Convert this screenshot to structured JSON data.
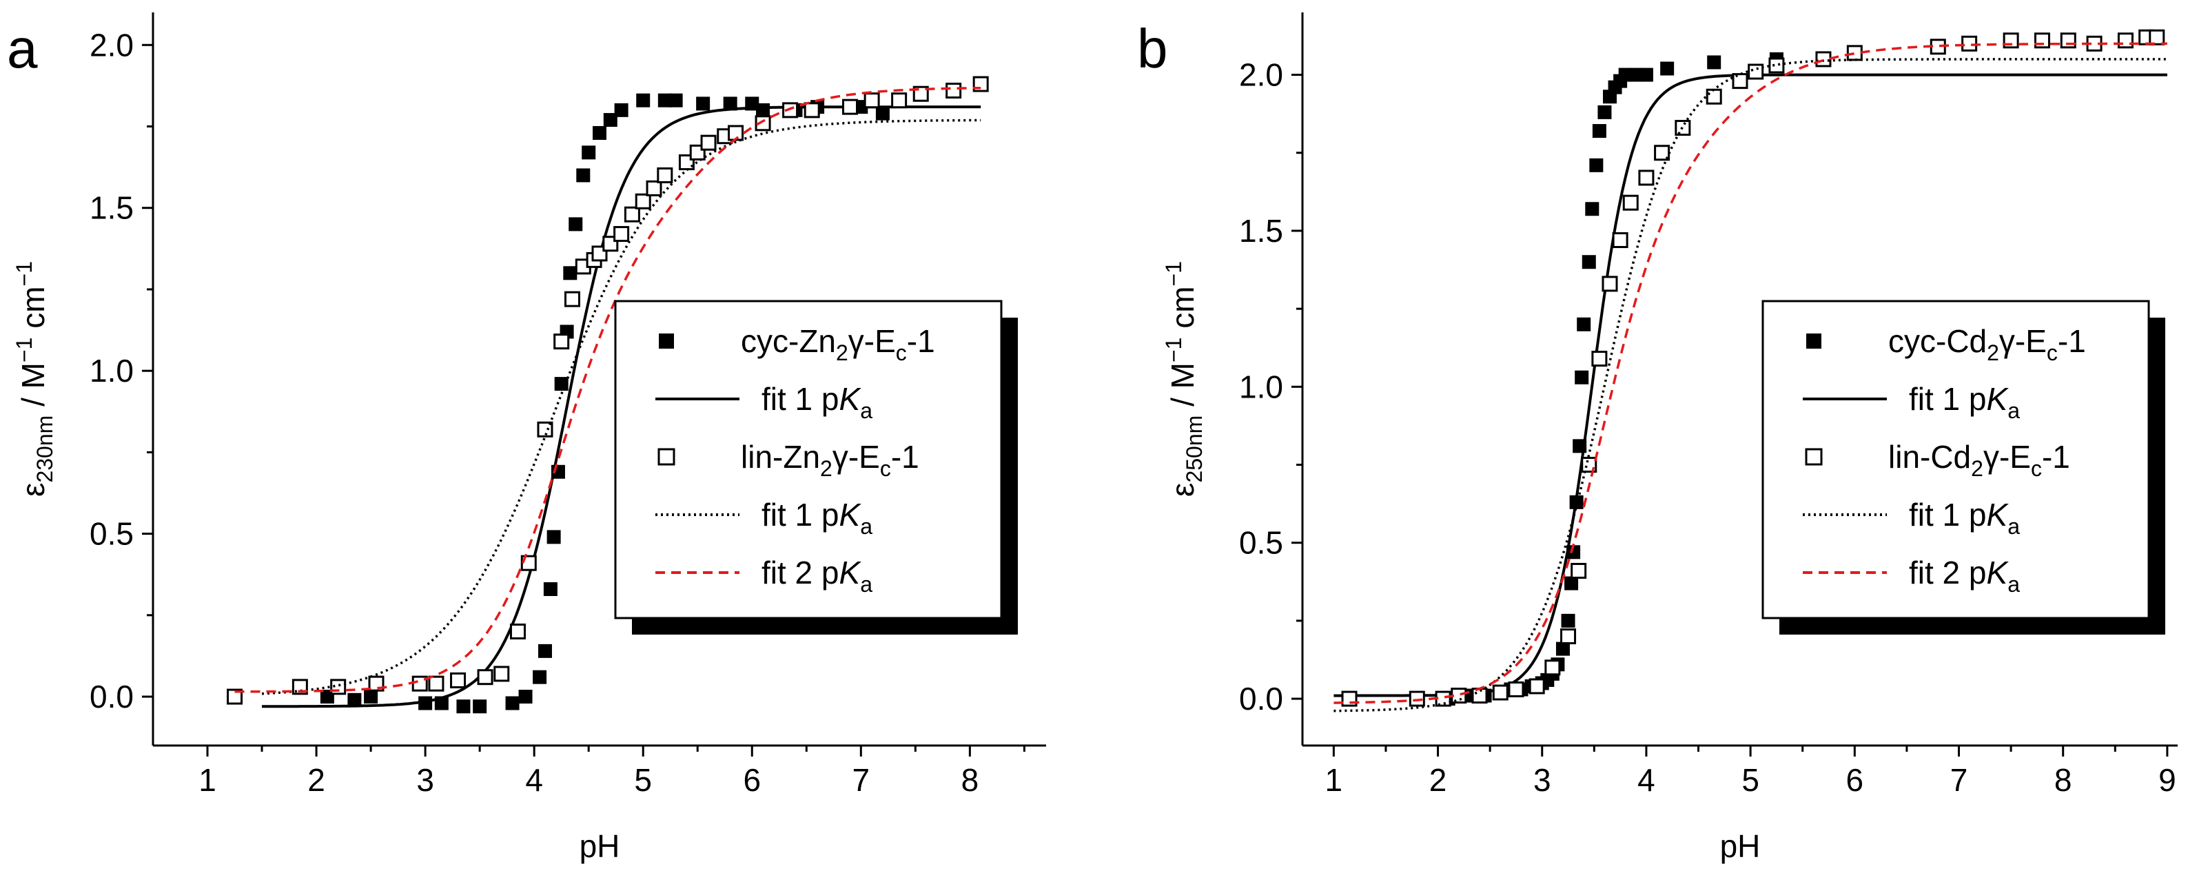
{
  "chart_data": [
    {
      "type": "scatter",
      "panel_label": "a",
      "xlabel": "pH",
      "ylabel": {
        "eps": "ε",
        "sub": "230nm",
        "unit_main": " / M",
        "sup1": "−1",
        "unit_cm": " cm",
        "sup2": "−1"
      },
      "xlim": [
        0.5,
        8.7
      ],
      "ylim": [
        -0.15,
        2.1
      ],
      "xticks": [
        1,
        2,
        3,
        4,
        5,
        6,
        7,
        8
      ],
      "xtick_labels": [
        "1",
        "2",
        "3",
        "4",
        "5",
        "6",
        "7",
        "8"
      ],
      "yticks": [
        0.0,
        0.5,
        1.0,
        1.5,
        2.0
      ],
      "ytick_labels": [
        "0.0",
        "0.5",
        "1.0",
        "1.5",
        "2.0"
      ],
      "grid": false,
      "legend_position": "right",
      "legend": [
        {
          "parts": [
            "cyc-Zn",
            "2",
            "γ-E",
            "c",
            "-1"
          ]
        },
        {
          "parts": [
            "fit 1 p",
            "K",
            "a"
          ]
        },
        {
          "parts": [
            "lin-Zn",
            "2",
            "γ-E",
            "c",
            "-1"
          ]
        },
        {
          "parts": [
            "fit 1 p",
            "K",
            "a"
          ]
        },
        {
          "parts": [
            "fit 2 p",
            "K",
            "a"
          ]
        }
      ],
      "series": [
        {
          "style": "filled-square",
          "color": "#000000",
          "x": [
            2.1,
            2.35,
            2.5,
            3.0,
            3.15,
            3.35,
            3.5,
            3.8,
            3.92,
            4.05,
            4.1,
            4.15,
            4.18,
            4.22,
            4.25,
            4.3,
            4.33,
            4.38,
            4.45,
            4.5,
            4.6,
            4.7,
            4.8,
            5.0,
            5.2,
            5.3,
            5.55,
            5.8,
            6.0,
            6.1,
            6.4,
            6.6,
            7.0,
            7.2
          ],
          "y": [
            0.0,
            -0.01,
            0.0,
            -0.02,
            -0.02,
            -0.03,
            -0.03,
            -0.02,
            0.0,
            0.06,
            0.14,
            0.33,
            0.49,
            0.69,
            0.96,
            1.12,
            1.3,
            1.45,
            1.6,
            1.67,
            1.73,
            1.77,
            1.8,
            1.83,
            1.83,
            1.83,
            1.82,
            1.82,
            1.82,
            1.8,
            1.8,
            1.81,
            1.81,
            1.79
          ]
        },
        {
          "style": "line-solid",
          "color": "#000000",
          "fit": {
            "bottom": -0.03,
            "top": 1.81,
            "pka": 4.3,
            "slope": 1.6
          },
          "x_range": [
            1.5,
            8.1
          ]
        },
        {
          "style": "open-square",
          "color": "#000000",
          "x": [
            1.25,
            1.85,
            2.2,
            2.55,
            2.95,
            3.1,
            3.3,
            3.55,
            3.7,
            3.85,
            3.95,
            4.1,
            4.25,
            4.35,
            4.45,
            4.55,
            4.6,
            4.7,
            4.8,
            4.9,
            5.0,
            5.1,
            5.2,
            5.4,
            5.5,
            5.6,
            5.75,
            5.85,
            6.1,
            6.35,
            6.55,
            6.9,
            7.1,
            7.35,
            7.55,
            7.85,
            8.1
          ],
          "y": [
            0.0,
            0.03,
            0.03,
            0.04,
            0.04,
            0.04,
            0.05,
            0.06,
            0.07,
            0.2,
            0.41,
            0.82,
            1.09,
            1.22,
            1.32,
            1.34,
            1.36,
            1.39,
            1.42,
            1.48,
            1.52,
            1.56,
            1.6,
            1.64,
            1.67,
            1.7,
            1.72,
            1.73,
            1.76,
            1.8,
            1.8,
            1.81,
            1.83,
            1.83,
            1.85,
            1.86,
            1.88
          ]
        },
        {
          "style": "line-dotted",
          "color": "#000000",
          "fit": {
            "bottom": 0.0,
            "top": 1.77,
            "pka": 4.2,
            "slope": 0.85
          },
          "x_range": [
            1.5,
            8.1
          ]
        },
        {
          "style": "line-dashed",
          "color": "#e41a1c",
          "fit2": {
            "bottom": 0.015,
            "mid": 1.3,
            "top": 1.87,
            "pka1": 4.2,
            "pka2": 5.35,
            "slope1": 1.3,
            "slope2": 0.9
          },
          "x_range": [
            1.25,
            8.1
          ]
        }
      ]
    },
    {
      "type": "scatter",
      "panel_label": "b",
      "xlabel": "pH",
      "ylabel": {
        "eps": "ε",
        "sub": "250nm",
        "unit_main": " / M",
        "sup1": "−1",
        "unit_cm": " cm",
        "sup2": "−1"
      },
      "xlim": [
        0.7,
        9.1
      ],
      "ylim": [
        -0.15,
        2.2
      ],
      "xticks": [
        1,
        2,
        3,
        4,
        5,
        6,
        7,
        8,
        9
      ],
      "xtick_labels": [
        "1",
        "2",
        "3",
        "4",
        "5",
        "6",
        "7",
        "8",
        "9"
      ],
      "yticks": [
        0.0,
        0.5,
        1.0,
        1.5,
        2.0
      ],
      "ytick_labels": [
        "0.0",
        "0.5",
        "1.0",
        "1.5",
        "2.0"
      ],
      "grid": false,
      "legend_position": "right",
      "legend": [
        {
          "parts": [
            "cyc-Cd",
            "2",
            "γ-E",
            "c",
            "-1"
          ]
        },
        {
          "parts": [
            "fit 1 p",
            "K",
            "a"
          ]
        },
        {
          "parts": [
            "lin-Cd",
            "2",
            "γ-E",
            "c",
            "-1"
          ]
        },
        {
          "parts": [
            "fit 1 p",
            "K",
            "a"
          ]
        },
        {
          "parts": [
            "fit 2 p",
            "K",
            "a"
          ]
        }
      ],
      "series": [
        {
          "style": "filled-square",
          "color": "#000000",
          "x": [
            2.1,
            2.25,
            2.35,
            2.45,
            2.6,
            2.7,
            2.8,
            2.9,
            3.0,
            3.05,
            3.1,
            3.15,
            3.2,
            3.25,
            3.28,
            3.3,
            3.33,
            3.36,
            3.38,
            3.4,
            3.45,
            3.48,
            3.52,
            3.55,
            3.6,
            3.65,
            3.7,
            3.75,
            3.8,
            3.9,
            4.0,
            4.2,
            4.65,
            5.25
          ],
          "y": [
            0.0,
            0.01,
            0.01,
            0.01,
            0.02,
            0.03,
            0.03,
            0.04,
            0.05,
            0.06,
            0.08,
            0.11,
            0.16,
            0.25,
            0.37,
            0.47,
            0.63,
            0.81,
            1.03,
            1.2,
            1.4,
            1.57,
            1.71,
            1.82,
            1.88,
            1.93,
            1.96,
            1.98,
            2.0,
            2.0,
            2.0,
            2.02,
            2.04,
            2.05
          ]
        },
        {
          "style": "line-solid",
          "color": "#000000",
          "fit": {
            "bottom": 0.01,
            "top": 2.0,
            "pka": 3.48,
            "slope": 2.2
          },
          "x_range": [
            1.0,
            9.0
          ]
        },
        {
          "style": "open-square",
          "color": "#000000",
          "x": [
            1.15,
            1.8,
            2.05,
            2.2,
            2.4,
            2.6,
            2.75,
            2.95,
            3.1,
            3.25,
            3.35,
            3.45,
            3.55,
            3.65,
            3.75,
            3.85,
            4.0,
            4.15,
            4.35,
            4.65,
            4.9,
            5.05,
            5.25,
            5.7,
            6.0,
            6.8,
            7.1,
            7.5,
            7.8,
            8.05,
            8.3,
            8.6,
            8.8,
            8.9
          ],
          "y": [
            0.0,
            0.0,
            0.0,
            0.01,
            0.01,
            0.02,
            0.03,
            0.04,
            0.1,
            0.2,
            0.41,
            0.75,
            1.09,
            1.33,
            1.47,
            1.59,
            1.67,
            1.75,
            1.83,
            1.93,
            1.98,
            2.01,
            2.03,
            2.05,
            2.07,
            2.09,
            2.1,
            2.11,
            2.11,
            2.11,
            2.1,
            2.11,
            2.12,
            2.12
          ]
        },
        {
          "style": "line-dotted",
          "color": "#000000",
          "fit": {
            "bottom": -0.04,
            "top": 2.05,
            "pka": 3.6,
            "slope": 1.25
          },
          "x_range": [
            1.0,
            9.0
          ]
        },
        {
          "style": "line-dashed",
          "color": "#e41a1c",
          "fit2": {
            "bottom": -0.015,
            "mid": 1.35,
            "top": 2.1,
            "pka1": 3.55,
            "pka2": 4.3,
            "slope1": 1.5,
            "slope2": 0.8
          },
          "x_range": [
            1.0,
            9.0
          ]
        }
      ]
    }
  ]
}
